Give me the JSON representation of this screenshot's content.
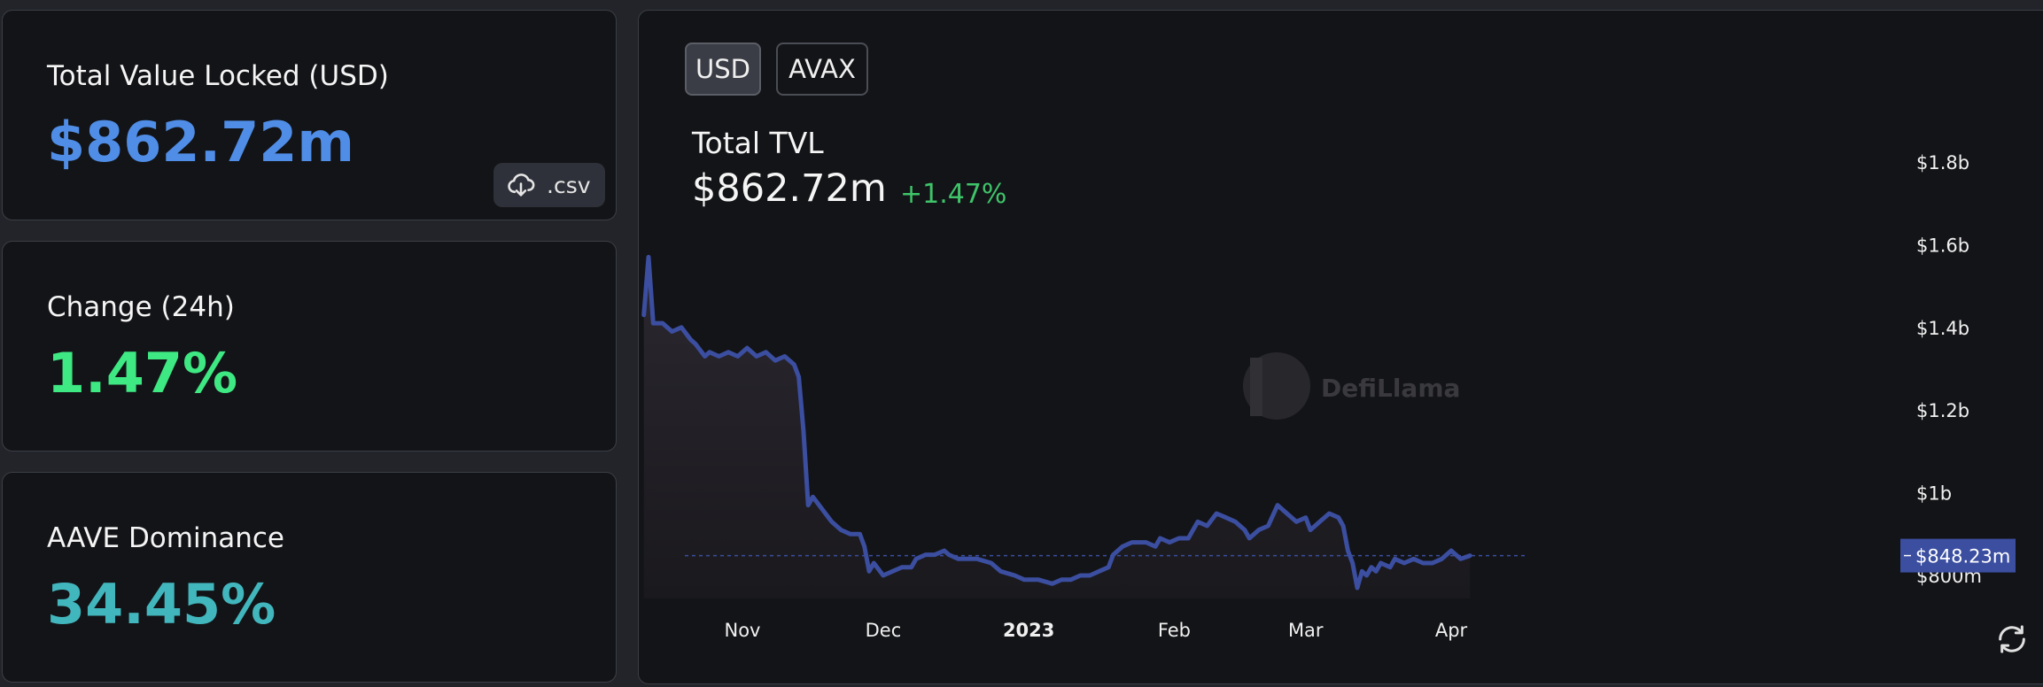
{
  "cards": {
    "tvl": {
      "label": "Total Value Locked (USD)",
      "value": "$862.72m",
      "csv_label": ".csv"
    },
    "change": {
      "label": "Change (24h)",
      "value": "1.47%"
    },
    "dominance": {
      "label": "AAVE Dominance",
      "value": "34.45%"
    }
  },
  "chart_panel": {
    "toggles": [
      "USD",
      "AVAX"
    ],
    "selected_toggle": "USD",
    "title": "Total TVL",
    "value": "$862.72m",
    "change": "+1.47%",
    "watermark": "DefiLlama",
    "current_marker": "$848.23m"
  },
  "colors": {
    "line": "#3b4ea0",
    "tvl_value": "#4f8de6",
    "change_value": "#3ee882",
    "dominance_value": "#42b6bd",
    "positive_change": "#3fc46a",
    "marker_bg": "#3b4ea0"
  },
  "chart_data": {
    "type": "area",
    "title": "Total TVL",
    "xlabel": "",
    "ylabel": "",
    "ylim": [
      0.75,
      1.9
    ],
    "y_unit": "billions USD",
    "y_ticks": [
      0.8,
      1.0,
      1.2,
      1.4,
      1.6,
      1.8
    ],
    "y_tick_labels": [
      "$800m",
      "$1b",
      "$1.2b",
      "$1.4b",
      "$1.6b",
      "$1.8b"
    ],
    "x_ticks": [
      "2022-11-01",
      "2022-12-01",
      "2023-01-01",
      "2023-02-01",
      "2023-03-01",
      "2023-04-01"
    ],
    "x_tick_labels": [
      "Nov",
      "Dec",
      "2023",
      "Feb",
      "Mar",
      "Apr"
    ],
    "x_range": [
      "2022-10-11",
      "2023-04-05"
    ],
    "reference_line": 0.848,
    "series": [
      {
        "points": [
          [
            "2022-10-11",
            1.43
          ],
          [
            "2022-10-12",
            1.57
          ],
          [
            "2022-10-13",
            1.41
          ],
          [
            "2022-10-15",
            1.41
          ],
          [
            "2022-10-17",
            1.39
          ],
          [
            "2022-10-19",
            1.4
          ],
          [
            "2022-10-21",
            1.37
          ],
          [
            "2022-10-22",
            1.36
          ],
          [
            "2022-10-24",
            1.33
          ],
          [
            "2022-10-25",
            1.34
          ],
          [
            "2022-10-27",
            1.33
          ],
          [
            "2022-10-29",
            1.34
          ],
          [
            "2022-10-31",
            1.33
          ],
          [
            "2022-11-02",
            1.35
          ],
          [
            "2022-11-04",
            1.33
          ],
          [
            "2022-11-06",
            1.34
          ],
          [
            "2022-11-08",
            1.32
          ],
          [
            "2022-11-10",
            1.33
          ],
          [
            "2022-11-12",
            1.31
          ],
          [
            "2022-11-13",
            1.28
          ],
          [
            "2022-11-14",
            1.15
          ],
          [
            "2022-11-15",
            0.97
          ],
          [
            "2022-11-16",
            0.99
          ],
          [
            "2022-11-18",
            0.96
          ],
          [
            "2022-11-20",
            0.93
          ],
          [
            "2022-11-22",
            0.91
          ],
          [
            "2022-11-24",
            0.9
          ],
          [
            "2022-11-26",
            0.9
          ],
          [
            "2022-11-27",
            0.87
          ],
          [
            "2022-11-28",
            0.81
          ],
          [
            "2022-11-29",
            0.83
          ],
          [
            "2022-12-01",
            0.8
          ],
          [
            "2022-12-03",
            0.81
          ],
          [
            "2022-12-05",
            0.82
          ],
          [
            "2022-12-07",
            0.82
          ],
          [
            "2022-12-08",
            0.84
          ],
          [
            "2022-12-10",
            0.85
          ],
          [
            "2022-12-12",
            0.85
          ],
          [
            "2022-12-14",
            0.86
          ],
          [
            "2022-12-15",
            0.85
          ],
          [
            "2022-12-17",
            0.84
          ],
          [
            "2022-12-19",
            0.84
          ],
          [
            "2022-12-21",
            0.84
          ],
          [
            "2022-12-24",
            0.83
          ],
          [
            "2022-12-26",
            0.81
          ],
          [
            "2022-12-29",
            0.8
          ],
          [
            "2022-12-31",
            0.79
          ],
          [
            "2023-01-03",
            0.79
          ],
          [
            "2023-01-06",
            0.78
          ],
          [
            "2023-01-08",
            0.79
          ],
          [
            "2023-01-10",
            0.79
          ],
          [
            "2023-01-12",
            0.8
          ],
          [
            "2023-01-14",
            0.8
          ],
          [
            "2023-01-16",
            0.81
          ],
          [
            "2023-01-18",
            0.82
          ],
          [
            "2023-01-19",
            0.85
          ],
          [
            "2023-01-21",
            0.87
          ],
          [
            "2023-01-23",
            0.88
          ],
          [
            "2023-01-26",
            0.88
          ],
          [
            "2023-01-28",
            0.87
          ],
          [
            "2023-01-29",
            0.89
          ],
          [
            "2023-01-31",
            0.88
          ],
          [
            "2023-02-02",
            0.89
          ],
          [
            "2023-02-04",
            0.89
          ],
          [
            "2023-02-06",
            0.93
          ],
          [
            "2023-02-08",
            0.92
          ],
          [
            "2023-02-10",
            0.95
          ],
          [
            "2023-02-12",
            0.94
          ],
          [
            "2023-02-14",
            0.93
          ],
          [
            "2023-02-16",
            0.91
          ],
          [
            "2023-02-17",
            0.89
          ],
          [
            "2023-02-19",
            0.91
          ],
          [
            "2023-02-21",
            0.92
          ],
          [
            "2023-02-23",
            0.97
          ],
          [
            "2023-02-25",
            0.95
          ],
          [
            "2023-02-27",
            0.93
          ],
          [
            "2023-03-01",
            0.94
          ],
          [
            "2023-03-02",
            0.91
          ],
          [
            "2023-03-04",
            0.93
          ],
          [
            "2023-03-06",
            0.95
          ],
          [
            "2023-03-08",
            0.94
          ],
          [
            "2023-03-09",
            0.92
          ],
          [
            "2023-03-10",
            0.86
          ],
          [
            "2023-03-11",
            0.83
          ],
          [
            "2023-03-12",
            0.77
          ],
          [
            "2023-03-13",
            0.81
          ],
          [
            "2023-03-14",
            0.8
          ],
          [
            "2023-03-15",
            0.82
          ],
          [
            "2023-03-16",
            0.81
          ],
          [
            "2023-03-17",
            0.83
          ],
          [
            "2023-03-19",
            0.82
          ],
          [
            "2023-03-20",
            0.84
          ],
          [
            "2023-03-22",
            0.83
          ],
          [
            "2023-03-24",
            0.84
          ],
          [
            "2023-03-26",
            0.83
          ],
          [
            "2023-03-28",
            0.83
          ],
          [
            "2023-03-30",
            0.84
          ],
          [
            "2023-04-01",
            0.86
          ],
          [
            "2023-04-03",
            0.84
          ],
          [
            "2023-04-05",
            0.848
          ]
        ]
      }
    ]
  }
}
